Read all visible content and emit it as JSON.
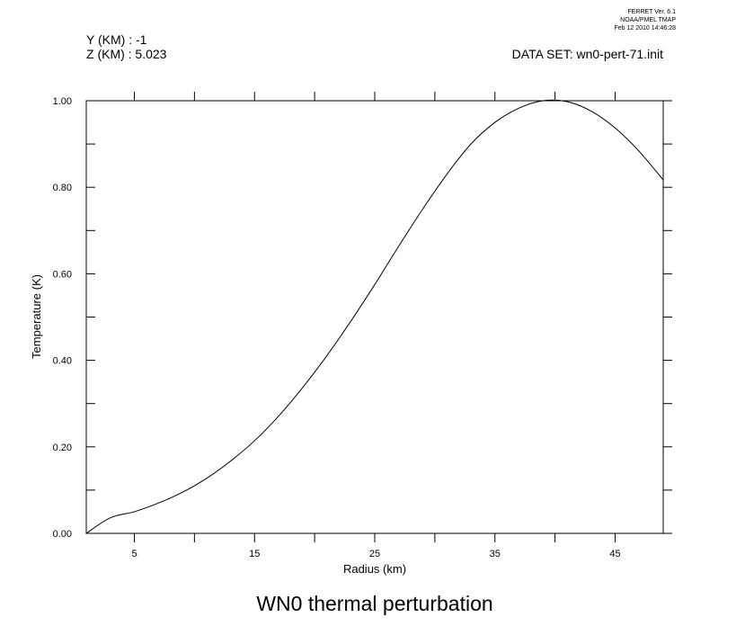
{
  "header": {
    "version_lines": [
      "FERRET Ver. 6.1",
      "NOAA/PMEL TMAP",
      "Feb 12 2010 14:46:28"
    ],
    "y_line": "Y (KM) : -1",
    "z_line": "Z (KM) : 5.023",
    "dataset_line": "DATA SET: wn0-pert-71.init"
  },
  "chart_data": {
    "type": "line",
    "title": "WN0 thermal perturbation",
    "xlabel": "Radius (km)",
    "ylabel": "Temperature (K)",
    "xlim": [
      1,
      49
    ],
    "ylim": [
      0.0,
      1.0
    ],
    "x_ticks": [
      5,
      15,
      25,
      35,
      45
    ],
    "y_ticks": [
      "0.00",
      "0.20",
      "0.40",
      "0.60",
      "0.80",
      "1.00"
    ],
    "grid": false,
    "series": [
      {
        "x": [
          1,
          3,
          5,
          7,
          9,
          11,
          13,
          15,
          17,
          19,
          21,
          23,
          25,
          27,
          29,
          31,
          33,
          35,
          37,
          39,
          41,
          43,
          45,
          47,
          49
        ],
        "values": [
          0.0,
          0.036,
          0.05,
          0.07,
          0.095,
          0.127,
          0.167,
          0.214,
          0.271,
          0.337,
          0.41,
          0.49,
          0.575,
          0.664,
          0.75,
          0.83,
          0.9,
          0.95,
          0.983,
          1.0,
          0.998,
          0.976,
          0.937,
          0.883,
          0.817
        ]
      }
    ]
  }
}
